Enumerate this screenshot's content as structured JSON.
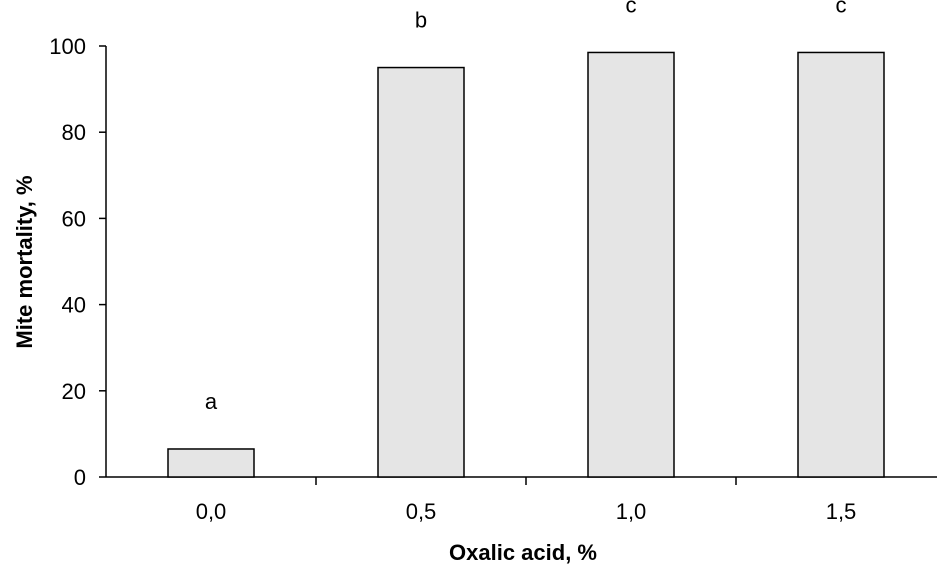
{
  "chart_data": {
    "type": "bar",
    "title": "",
    "xlabel": "Oxalic acid, %",
    "ylabel": "Mite mortality, %",
    "categories": [
      "0,0",
      "0,5",
      "1,0",
      "1,5"
    ],
    "values": [
      6.5,
      95,
      98.5,
      98.5
    ],
    "significance_labels": [
      "a",
      "b",
      "c",
      "c"
    ],
    "ylim": [
      0,
      100
    ],
    "yticks": [
      0,
      20,
      40,
      60,
      80,
      100
    ],
    "grid": false,
    "legend": "none",
    "bar_fill": "#e5e5e5",
    "bar_stroke": "#000000",
    "axis_color": "#000000"
  }
}
